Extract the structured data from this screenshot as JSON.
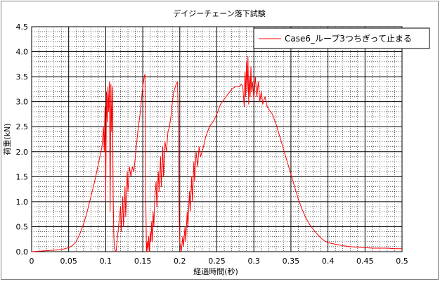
{
  "chart_data": {
    "type": "line",
    "title": "デイジーチェーン落下試験",
    "xlabel": "経過時間(秒)",
    "ylabel": "荷重(kN)",
    "xlim": [
      0,
      0.5
    ],
    "ylim": [
      0,
      4.5
    ],
    "x_ticks": [
      "0",
      "0.05",
      "0.1",
      "0.15",
      "0.2",
      "0.25",
      "0.3",
      "0.35",
      "0.4",
      "0.45",
      "0.5"
    ],
    "y_ticks": [
      "0.0",
      "0.5",
      "1.0",
      "1.5",
      "2.0",
      "2.5",
      "3.0",
      "3.5",
      "4.0",
      "4.5"
    ],
    "grid": true,
    "legend_position": "top-right",
    "series": [
      {
        "name": "Case6_ループ3つちぎって止まる",
        "color": "#ff0000",
        "points": [
          [
            0.0,
            0.0
          ],
          [
            0.02,
            0.02
          ],
          [
            0.04,
            0.04
          ],
          [
            0.05,
            0.08
          ],
          [
            0.055,
            0.12
          ],
          [
            0.06,
            0.2
          ],
          [
            0.065,
            0.35
          ],
          [
            0.07,
            0.55
          ],
          [
            0.075,
            0.8
          ],
          [
            0.08,
            1.1
          ],
          [
            0.085,
            1.4
          ],
          [
            0.09,
            1.75
          ],
          [
            0.095,
            2.1
          ],
          [
            0.097,
            2.5
          ],
          [
            0.098,
            2.0
          ],
          [
            0.099,
            2.9
          ],
          [
            0.1,
            1.0
          ],
          [
            0.101,
            3.2
          ],
          [
            0.102,
            2.6
          ],
          [
            0.103,
            3.3
          ],
          [
            0.104,
            2.8
          ],
          [
            0.105,
            3.4
          ],
          [
            0.106,
            0.8
          ],
          [
            0.107,
            3.35
          ],
          [
            0.108,
            2.4
          ],
          [
            0.109,
            3.3
          ],
          [
            0.11,
            1.2
          ],
          [
            0.111,
            0.3
          ],
          [
            0.112,
            0.05
          ],
          [
            0.114,
            0.0
          ],
          [
            0.116,
            0.3
          ],
          [
            0.118,
            0.6
          ],
          [
            0.12,
            0.9
          ],
          [
            0.121,
            0.4
          ],
          [
            0.123,
            1.1
          ],
          [
            0.124,
            0.5
          ],
          [
            0.126,
            1.3
          ],
          [
            0.127,
            0.7
          ],
          [
            0.129,
            1.6
          ],
          [
            0.13,
            1.2
          ],
          [
            0.132,
            1.7
          ],
          [
            0.134,
            1.5
          ],
          [
            0.136,
            1.7
          ],
          [
            0.138,
            1.6
          ],
          [
            0.14,
            1.9
          ],
          [
            0.142,
            2.2
          ],
          [
            0.144,
            2.5
          ],
          [
            0.146,
            2.7
          ],
          [
            0.148,
            3.0
          ],
          [
            0.15,
            3.3
          ],
          [
            0.152,
            3.5
          ],
          [
            0.153,
            3.55
          ],
          [
            0.154,
            1.2
          ],
          [
            0.155,
            0.0
          ],
          [
            0.156,
            0.2
          ],
          [
            0.157,
            0.0
          ],
          [
            0.158,
            0.3
          ],
          [
            0.159,
            0.0
          ],
          [
            0.16,
            0.4
          ],
          [
            0.161,
            0.2
          ],
          [
            0.162,
            0.6
          ],
          [
            0.163,
            0.2
          ],
          [
            0.164,
            0.8
          ],
          [
            0.165,
            0.5
          ],
          [
            0.166,
            1.0
          ],
          [
            0.168,
            1.4
          ],
          [
            0.169,
            0.9
          ],
          [
            0.171,
            1.6
          ],
          [
            0.172,
            1.2
          ],
          [
            0.174,
            1.9
          ],
          [
            0.175,
            1.3
          ],
          [
            0.177,
            2.1
          ],
          [
            0.178,
            1.5
          ],
          [
            0.18,
            2.2
          ],
          [
            0.182,
            2.0
          ],
          [
            0.184,
            2.4
          ],
          [
            0.186,
            2.5
          ],
          [
            0.188,
            2.7
          ],
          [
            0.19,
            3.0
          ],
          [
            0.192,
            3.2
          ],
          [
            0.195,
            3.35
          ],
          [
            0.197,
            3.4
          ],
          [
            0.198,
            2.5
          ],
          [
            0.199,
            0.8
          ],
          [
            0.2,
            0.2
          ],
          [
            0.202,
            0.0
          ],
          [
            0.204,
            0.3
          ],
          [
            0.205,
            0.1
          ],
          [
            0.207,
            0.5
          ],
          [
            0.208,
            0.2
          ],
          [
            0.21,
            0.8
          ],
          [
            0.211,
            0.5
          ],
          [
            0.213,
            1.2
          ],
          [
            0.214,
            0.8
          ],
          [
            0.216,
            1.5
          ],
          [
            0.217,
            1.0
          ],
          [
            0.219,
            1.8
          ],
          [
            0.22,
            1.4
          ],
          [
            0.222,
            2.0
          ],
          [
            0.224,
            1.7
          ],
          [
            0.226,
            2.1
          ],
          [
            0.228,
            1.9
          ],
          [
            0.23,
            2.0
          ],
          [
            0.232,
            2.1
          ],
          [
            0.235,
            2.3
          ],
          [
            0.24,
            2.5
          ],
          [
            0.245,
            2.6
          ],
          [
            0.25,
            2.75
          ],
          [
            0.255,
            2.95
          ],
          [
            0.26,
            3.05
          ],
          [
            0.265,
            3.15
          ],
          [
            0.27,
            3.25
          ],
          [
            0.275,
            3.3
          ],
          [
            0.28,
            3.3
          ],
          [
            0.283,
            3.35
          ],
          [
            0.285,
            3.3
          ],
          [
            0.287,
            2.9
          ],
          [
            0.288,
            3.6
          ],
          [
            0.289,
            3.1
          ],
          [
            0.29,
            3.8
          ],
          [
            0.291,
            3.2
          ],
          [
            0.292,
            3.9
          ],
          [
            0.293,
            2.95
          ],
          [
            0.294,
            3.5
          ],
          [
            0.295,
            3.1
          ],
          [
            0.296,
            3.7
          ],
          [
            0.297,
            3.2
          ],
          [
            0.298,
            3.4
          ],
          [
            0.3,
            3.05
          ],
          [
            0.302,
            3.5
          ],
          [
            0.304,
            3.1
          ],
          [
            0.306,
            3.4
          ],
          [
            0.308,
            3.0
          ],
          [
            0.31,
            3.2
          ],
          [
            0.312,
            2.95
          ],
          [
            0.315,
            3.1
          ],
          [
            0.318,
            2.9
          ],
          [
            0.32,
            2.85
          ],
          [
            0.325,
            2.75
          ],
          [
            0.33,
            2.55
          ],
          [
            0.335,
            2.3
          ],
          [
            0.34,
            2.05
          ],
          [
            0.345,
            1.8
          ],
          [
            0.35,
            1.55
          ],
          [
            0.355,
            1.3
          ],
          [
            0.36,
            1.05
          ],
          [
            0.365,
            0.85
          ],
          [
            0.37,
            0.68
          ],
          [
            0.375,
            0.55
          ],
          [
            0.38,
            0.45
          ],
          [
            0.385,
            0.36
          ],
          [
            0.39,
            0.28
          ],
          [
            0.395,
            0.22
          ],
          [
            0.4,
            0.18
          ],
          [
            0.41,
            0.15
          ],
          [
            0.42,
            0.12
          ],
          [
            0.43,
            0.1
          ],
          [
            0.44,
            0.09
          ],
          [
            0.45,
            0.08
          ],
          [
            0.46,
            0.07
          ],
          [
            0.47,
            0.07
          ],
          [
            0.48,
            0.07
          ],
          [
            0.49,
            0.06
          ],
          [
            0.5,
            0.06
          ]
        ]
      }
    ]
  }
}
